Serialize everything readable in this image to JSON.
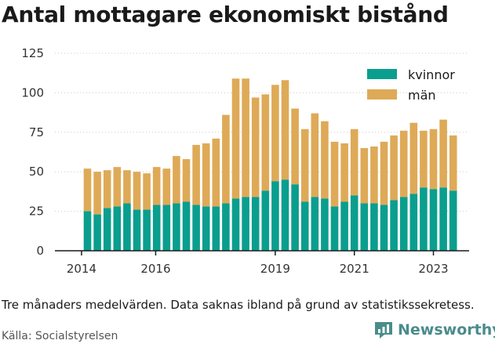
{
  "title": "Antal mottagare ekonomiskt bistånd",
  "footnote": "Tre månaders medelvärden. Data saknas ibland på grund av statistikssekretess.",
  "source": "Källa: Socialstyrelsen",
  "logo_text": "Newsworthy",
  "colors": {
    "kvinnor": "#0a9e8e",
    "man": "#deaa57",
    "axis": "#1a1a1a",
    "grid": "#cccccc",
    "logo": "#4a8c8c"
  },
  "chart_data": {
    "type": "bar",
    "stacked": true,
    "ylim": [
      0,
      125
    ],
    "yticks": [
      0,
      25,
      50,
      75,
      100,
      125
    ],
    "xticks": [
      {
        "label": "2014",
        "pos": -0.6
      },
      {
        "label": "2016",
        "pos": 6.9
      },
      {
        "label": "2019",
        "pos": 19.0
      },
      {
        "label": "2021",
        "pos": 27.0
      },
      {
        "label": "2023",
        "pos": 35.0
      }
    ],
    "grid": true,
    "legend_position": "top-right",
    "series": [
      {
        "name": "kvinnor",
        "color": "#0a9e8e",
        "values": [
          25,
          23,
          27,
          28,
          30,
          26,
          26,
          29,
          29,
          30,
          31,
          29,
          28,
          28,
          30,
          33,
          34,
          34,
          38,
          44,
          45,
          42,
          31,
          34,
          33,
          28,
          31,
          35,
          30,
          30,
          29,
          32,
          34,
          36,
          40,
          39,
          40,
          38
        ]
      },
      {
        "name": "män",
        "color": "#deaa57",
        "values": [
          27,
          27,
          24,
          25,
          21,
          24,
          23,
          24,
          23,
          30,
          27,
          38,
          40,
          43,
          56,
          76,
          75,
          63,
          61,
          61,
          63,
          48,
          46,
          53,
          49,
          41,
          37,
          42,
          35,
          36,
          40,
          41,
          42,
          45,
          36,
          38,
          43,
          35
        ]
      }
    ]
  }
}
